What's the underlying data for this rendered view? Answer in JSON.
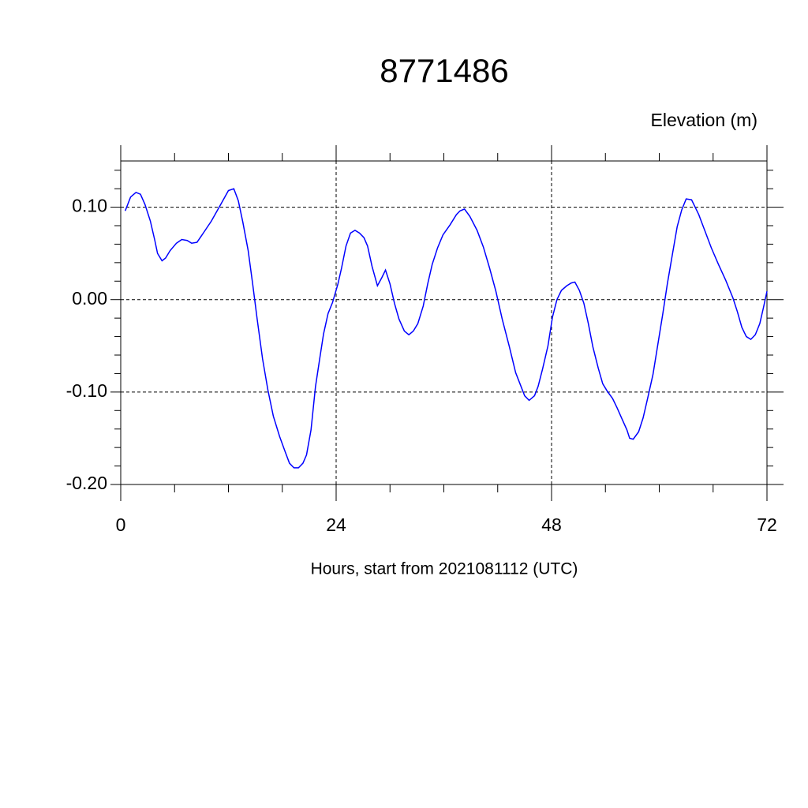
{
  "chart_data": {
    "type": "line",
    "title": "8771486",
    "y_label": "Elevation (m)",
    "x_label": "Hours, start from 2021081112 (UTC)",
    "xlim": [
      0,
      72
    ],
    "xticks": [
      0,
      24,
      48,
      72
    ],
    "ylim": [
      -0.2,
      0.15
    ],
    "yticks": [
      {
        "value": -0.2,
        "label": "-0.20"
      },
      {
        "value": -0.1,
        "label": "-0.10"
      },
      {
        "value": 0,
        "label": "0.00"
      },
      {
        "value": 0.1,
        "label": "0.10"
      }
    ],
    "grid": true,
    "series": [
      {
        "color": "#0000ff",
        "x": [
          0.5,
          1.1,
          1.7,
          2.2,
          2.7,
          3.3,
          3.8,
          4.1,
          4.6,
          5.0,
          5.5,
          6.2,
          6.8,
          7.4,
          7.9,
          8.5,
          9.2,
          10.1,
          11.2,
          12.0,
          12.6,
          13.1,
          13.6,
          14.2,
          14.7,
          15.2,
          15.8,
          16.4,
          17.0,
          17.7,
          18.3,
          18.8,
          19.3,
          19.8,
          20.3,
          20.7,
          21.2,
          21.7,
          22.2,
          22.6,
          23.1,
          23.6,
          24.2,
          24.6,
          25.1,
          25.6,
          26.1,
          26.6,
          27.1,
          27.5,
          28.0,
          28.6,
          29.1,
          29.5,
          30.0,
          30.5,
          31.0,
          31.6,
          32.1,
          32.6,
          33.1,
          33.7,
          34.2,
          34.7,
          35.3,
          35.9,
          36.7,
          37.4,
          37.8,
          38.3,
          38.9,
          39.7,
          40.4,
          41.1,
          41.8,
          42.5,
          43.3,
          44.0,
          44.6,
          45.0,
          45.5,
          46.1,
          46.5,
          47.0,
          47.6,
          48.1,
          48.6,
          49.1,
          49.7,
          50.2,
          50.6,
          51.1,
          51.6,
          52.1,
          52.6,
          53.2,
          53.7,
          54.2,
          54.8,
          55.3,
          55.8,
          56.4,
          56.7,
          57.1,
          57.7,
          58.2,
          58.7,
          59.3,
          59.8,
          60.4,
          60.9,
          61.5,
          62.0,
          62.5,
          63.0,
          63.6,
          64.4,
          65.1,
          65.8,
          66.6,
          67.4,
          68.2,
          68.7,
          69.2,
          69.7,
          70.2,
          70.7,
          71.2,
          71.6,
          72.0
        ],
        "values": [
          0.096,
          0.111,
          0.116,
          0.114,
          0.103,
          0.085,
          0.064,
          0.05,
          0.042,
          0.045,
          0.053,
          0.061,
          0.065,
          0.064,
          0.061,
          0.062,
          0.072,
          0.085,
          0.104,
          0.118,
          0.12,
          0.107,
          0.084,
          0.053,
          0.017,
          -0.021,
          -0.064,
          -0.098,
          -0.126,
          -0.148,
          -0.164,
          -0.177,
          -0.182,
          -0.182,
          -0.177,
          -0.168,
          -0.141,
          -0.094,
          -0.062,
          -0.037,
          -0.015,
          -0.003,
          0.017,
          0.034,
          0.058,
          0.072,
          0.075,
          0.072,
          0.067,
          0.058,
          0.036,
          0.015,
          0.024,
          0.032,
          0.017,
          -0.004,
          -0.021,
          -0.034,
          -0.038,
          -0.034,
          -0.026,
          -0.007,
          0.017,
          0.038,
          0.056,
          0.07,
          0.081,
          0.092,
          0.096,
          0.098,
          0.09,
          0.075,
          0.057,
          0.034,
          0.009,
          -0.021,
          -0.051,
          -0.079,
          -0.094,
          -0.104,
          -0.109,
          -0.104,
          -0.094,
          -0.075,
          -0.05,
          -0.019,
          0.0,
          0.01,
          0.015,
          0.018,
          0.019,
          0.01,
          -0.004,
          -0.026,
          -0.051,
          -0.074,
          -0.091,
          -0.099,
          -0.107,
          -0.117,
          -0.128,
          -0.141,
          -0.15,
          -0.151,
          -0.143,
          -0.128,
          -0.107,
          -0.081,
          -0.051,
          -0.015,
          0.017,
          0.051,
          0.079,
          0.097,
          0.109,
          0.108,
          0.092,
          0.074,
          0.056,
          0.038,
          0.021,
          0.002,
          -0.013,
          -0.03,
          -0.04,
          -0.043,
          -0.038,
          -0.026,
          -0.009,
          0.009
        ]
      }
    ]
  }
}
